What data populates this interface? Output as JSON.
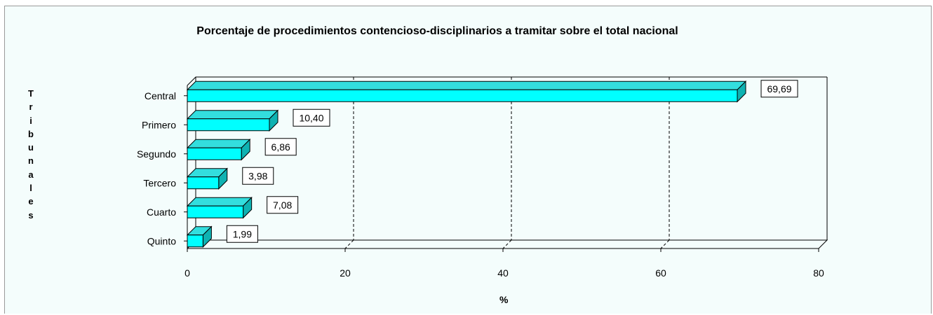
{
  "chart_data": {
    "type": "bar",
    "orientation": "horizontal",
    "title": "Porcentaje de procedimientos contencioso-disciplinarios a tramitar sobre el total nacional",
    "xlabel": "%",
    "ylabel": "Tribunales",
    "categories": [
      "Central",
      "Primero",
      "Segundo",
      "Tercero",
      "Cuarto",
      "Quinto"
    ],
    "values": [
      69.69,
      10.4,
      6.86,
      3.98,
      7.08,
      1.99
    ],
    "value_labels": [
      "69,69",
      "10,40",
      "6,86",
      "3,98",
      "7,08",
      "1,99"
    ],
    "xlim": [
      0,
      80
    ],
    "xticks": [
      0,
      20,
      40,
      60,
      80
    ],
    "xtick_labels": [
      "0",
      "20",
      "40",
      "60",
      "80"
    ],
    "grid": "vertical dashed",
    "colors": {
      "bar": "#00ffff",
      "bar_top": "#33dede",
      "bar_side": "#0fb2b2",
      "background": "#f4fdfc"
    }
  }
}
